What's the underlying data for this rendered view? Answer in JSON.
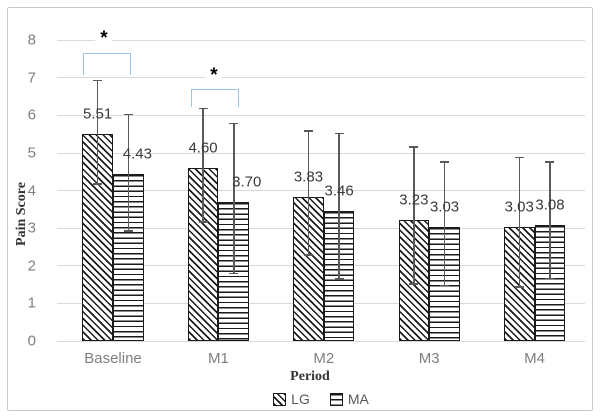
{
  "chart_data": {
    "type": "bar",
    "title": "",
    "xlabel": "Period",
    "ylabel": "Pain Score",
    "categories": [
      "Baseline",
      "M1",
      "M2",
      "M3",
      "M4"
    ],
    "series": [
      {
        "name": "LG",
        "pattern": "diagonal-hatch",
        "values": [
          5.51,
          4.6,
          3.83,
          3.23,
          3.03
        ],
        "error_upper": [
          6.95,
          6.2,
          5.6,
          5.18,
          4.9
        ],
        "error_lower": [
          4.15,
          3.15,
          2.27,
          1.49,
          1.41
        ]
      },
      {
        "name": "MA",
        "pattern": "horizontal-lines",
        "values": [
          4.43,
          3.7,
          3.46,
          3.03,
          3.08
        ],
        "error_upper": [
          6.05,
          5.8,
          5.54,
          4.78,
          4.78
        ],
        "error_lower": [
          2.9,
          1.78,
          1.63,
          1.45,
          1.64
        ]
      }
    ],
    "yticks": [
      "0",
      "1",
      "2",
      "3",
      "4",
      "5",
      "6",
      "7",
      "8"
    ],
    "ylim": [
      0,
      8
    ],
    "grid": true,
    "legend_position": "bottom",
    "significance": [
      {
        "symbol": "*",
        "category": "Baseline",
        "bracket": {
          "x1": 83,
          "x2": 131,
          "top": 53,
          "bottom": 75
        },
        "star": {
          "x": 104,
          "y": 32
        }
      },
      {
        "symbol": "*",
        "category": "M1",
        "bracket": {
          "x1": 191,
          "x2": 239,
          "top": 89,
          "bottom": 107
        },
        "star": {
          "x": 214,
          "y": 69
        }
      }
    ],
    "label_dx": [
      [
        0,
        0,
        0,
        0,
        0
      ],
      [
        9,
        13,
        0,
        0,
        0
      ]
    ],
    "colors": {
      "gridline": "#d9d9d9",
      "error_bar": "#595959",
      "bracket": "#9dc3e6",
      "tick_label": "#7f7f7f",
      "value_label": "#3a3a3a",
      "bar_border": "#1a1a1a",
      "bar_fill": "#ffffff"
    }
  }
}
